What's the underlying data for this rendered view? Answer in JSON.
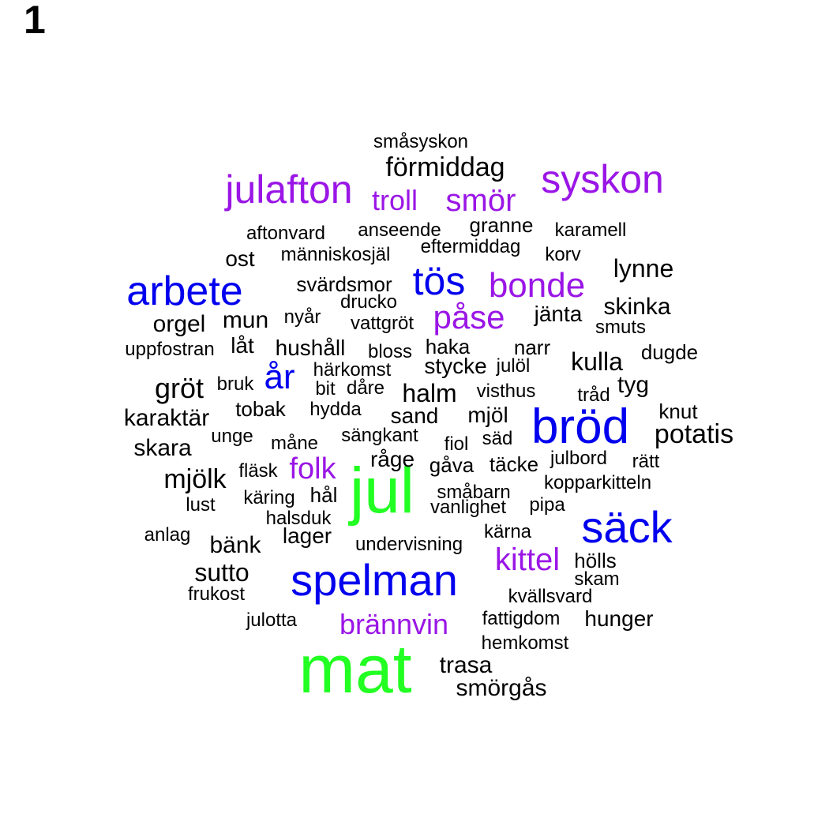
{
  "page_number": "1",
  "colors": {
    "green": "#22ff22",
    "blue": "#0000ee",
    "purple": "#9a16e6",
    "black": "#000000"
  },
  "words": [
    {
      "text": "mat",
      "color": "green"
    },
    {
      "text": "jul",
      "color": "green"
    },
    {
      "text": "spelman",
      "color": "blue"
    },
    {
      "text": "bröd",
      "color": "blue"
    },
    {
      "text": "säck",
      "color": "blue"
    },
    {
      "text": "arbete",
      "color": "blue"
    },
    {
      "text": "år",
      "color": "blue"
    },
    {
      "text": "tös",
      "color": "blue"
    },
    {
      "text": "julafton",
      "color": "purple"
    },
    {
      "text": "syskon",
      "color": "purple"
    },
    {
      "text": "bonde",
      "color": "purple"
    },
    {
      "text": "påse",
      "color": "purple"
    },
    {
      "text": "smör",
      "color": "purple"
    },
    {
      "text": "troll",
      "color": "purple"
    },
    {
      "text": "kittel",
      "color": "purple"
    },
    {
      "text": "brännvin",
      "color": "purple"
    },
    {
      "text": "folk",
      "color": "purple"
    },
    {
      "text": "småsyskon",
      "color": "black"
    },
    {
      "text": "förmiddag",
      "color": "black"
    },
    {
      "text": "granne",
      "color": "black"
    },
    {
      "text": "aftonvard",
      "color": "black"
    },
    {
      "text": "anseende",
      "color": "black"
    },
    {
      "text": "karamell",
      "color": "black"
    },
    {
      "text": "eftermiddag",
      "color": "black"
    },
    {
      "text": "ost",
      "color": "black"
    },
    {
      "text": "människosjäl",
      "color": "black"
    },
    {
      "text": "korv",
      "color": "black"
    },
    {
      "text": "lynne",
      "color": "black"
    },
    {
      "text": "svärdsmor",
      "color": "black"
    },
    {
      "text": "drucko",
      "color": "black"
    },
    {
      "text": "skinka",
      "color": "black"
    },
    {
      "text": "orgel",
      "color": "black"
    },
    {
      "text": "mun",
      "color": "black"
    },
    {
      "text": "nyår",
      "color": "black"
    },
    {
      "text": "vattgröt",
      "color": "black"
    },
    {
      "text": "jänta",
      "color": "black"
    },
    {
      "text": "smuts",
      "color": "black"
    },
    {
      "text": "uppfostran",
      "color": "black"
    },
    {
      "text": "låt",
      "color": "black"
    },
    {
      "text": "hushåll",
      "color": "black"
    },
    {
      "text": "bloss",
      "color": "black"
    },
    {
      "text": "haka",
      "color": "black"
    },
    {
      "text": "narr",
      "color": "black"
    },
    {
      "text": "dugde",
      "color": "black"
    },
    {
      "text": "härkomst",
      "color": "black"
    },
    {
      "text": "stycke",
      "color": "black"
    },
    {
      "text": "julöl",
      "color": "black"
    },
    {
      "text": "kulla",
      "color": "black"
    },
    {
      "text": "gröt",
      "color": "black"
    },
    {
      "text": "bruk",
      "color": "black"
    },
    {
      "text": "bit",
      "color": "black"
    },
    {
      "text": "dåre",
      "color": "black"
    },
    {
      "text": "halm",
      "color": "black"
    },
    {
      "text": "visthus",
      "color": "black"
    },
    {
      "text": "tråd",
      "color": "black"
    },
    {
      "text": "tyg",
      "color": "black"
    },
    {
      "text": "karaktär",
      "color": "black"
    },
    {
      "text": "tobak",
      "color": "black"
    },
    {
      "text": "hydda",
      "color": "black"
    },
    {
      "text": "sand",
      "color": "black"
    },
    {
      "text": "mjöl",
      "color": "black"
    },
    {
      "text": "knut",
      "color": "black"
    },
    {
      "text": "potatis",
      "color": "black"
    },
    {
      "text": "skara",
      "color": "black"
    },
    {
      "text": "unge",
      "color": "black"
    },
    {
      "text": "måne",
      "color": "black"
    },
    {
      "text": "sängkant",
      "color": "black"
    },
    {
      "text": "fiol",
      "color": "black"
    },
    {
      "text": "säd",
      "color": "black"
    },
    {
      "text": "julbord",
      "color": "black"
    },
    {
      "text": "rätt",
      "color": "black"
    },
    {
      "text": "fläsk",
      "color": "black"
    },
    {
      "text": "råge",
      "color": "black"
    },
    {
      "text": "gåva",
      "color": "black"
    },
    {
      "text": "täcke",
      "color": "black"
    },
    {
      "text": "mjölk",
      "color": "black"
    },
    {
      "text": "kopparkitteln",
      "color": "black"
    },
    {
      "text": "lust",
      "color": "black"
    },
    {
      "text": "käring",
      "color": "black"
    },
    {
      "text": "hål",
      "color": "black"
    },
    {
      "text": "småbarn",
      "color": "black"
    },
    {
      "text": "vanlighet",
      "color": "black"
    },
    {
      "text": "pipa",
      "color": "black"
    },
    {
      "text": "halsduk",
      "color": "black"
    },
    {
      "text": "anlag",
      "color": "black"
    },
    {
      "text": "lager",
      "color": "black"
    },
    {
      "text": "kärna",
      "color": "black"
    },
    {
      "text": "bänk",
      "color": "black"
    },
    {
      "text": "undervisning",
      "color": "black"
    },
    {
      "text": "hölls",
      "color": "black"
    },
    {
      "text": "sutto",
      "color": "black"
    },
    {
      "text": "skam",
      "color": "black"
    },
    {
      "text": "frukost",
      "color": "black"
    },
    {
      "text": "kvällsvard",
      "color": "black"
    },
    {
      "text": "julotta",
      "color": "black"
    },
    {
      "text": "fattigdom",
      "color": "black"
    },
    {
      "text": "hunger",
      "color": "black"
    },
    {
      "text": "hemkomst",
      "color": "black"
    },
    {
      "text": "trasa",
      "color": "black"
    },
    {
      "text": "smörgås",
      "color": "black"
    }
  ]
}
